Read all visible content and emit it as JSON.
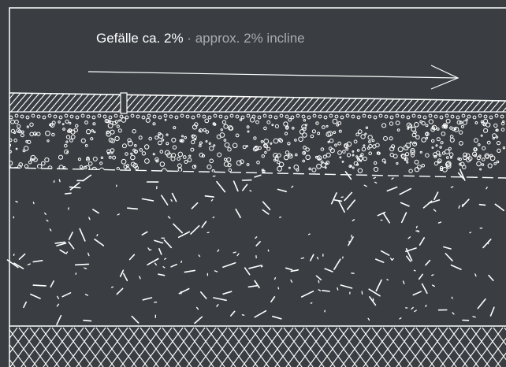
{
  "diagram": {
    "caption": {
      "primary": "Gefälle ca. 2%",
      "separator": "·",
      "secondary": "approx. 2% incline"
    },
    "colors": {
      "background": "#3a3e42",
      "line": "#ffffff",
      "secondary_text": "#a9acaf"
    },
    "icons": {
      "slope_arrow": "arrow-right-icon"
    },
    "layers": [
      {
        "name": "paving-surface",
        "pattern": "diagonal-hatch"
      },
      {
        "name": "bedding-layer",
        "pattern": "gravel-circles"
      },
      {
        "name": "base-course",
        "pattern": "scattered-dashes"
      },
      {
        "name": "subsoil",
        "pattern": "herringbone-hatch"
      }
    ],
    "incline_percent": 2
  }
}
